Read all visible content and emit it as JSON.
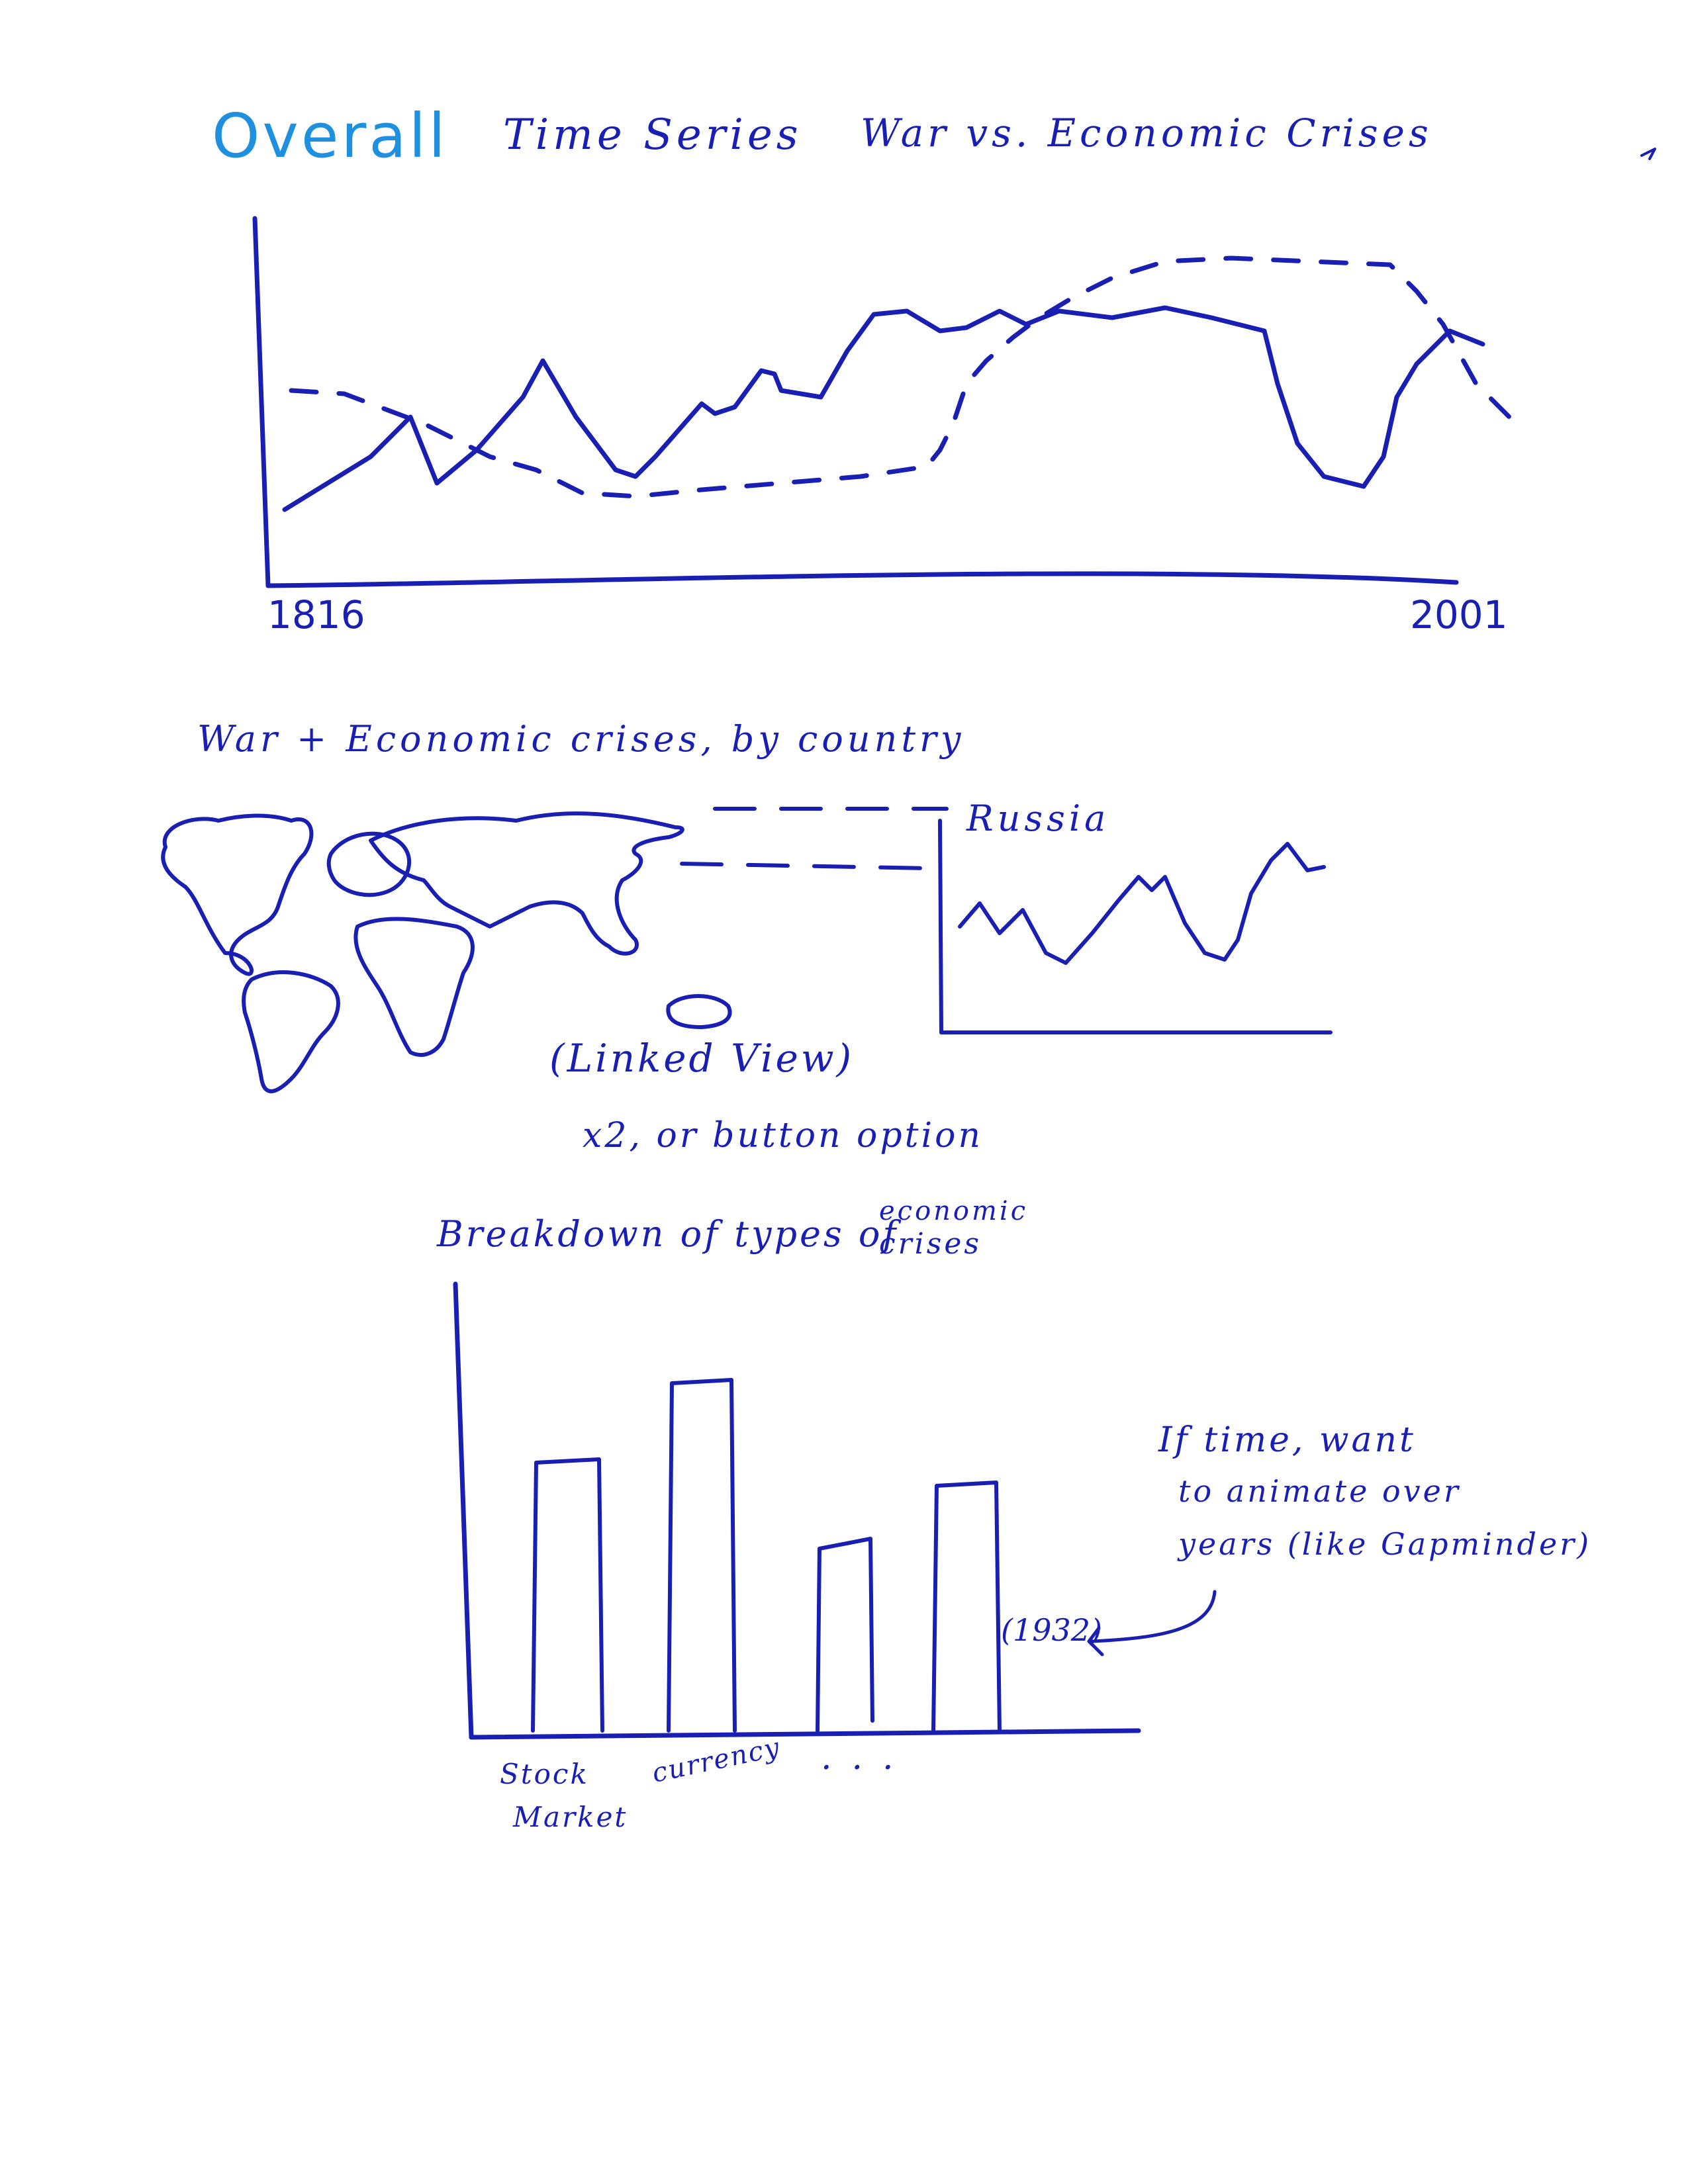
{
  "overall": {
    "word": "Overall",
    "time_series": "Time Series",
    "title": "War vs. Economic Crises",
    "x_start": "1816",
    "x_end": "2001"
  },
  "by_country": {
    "title": "War + Economic crises, by country",
    "country": "Russia",
    "linked_view": "(Linked View)",
    "option": "x2, or button option"
  },
  "breakdown": {
    "title_a": "Breakdown of types of",
    "title_b": "economic",
    "title_c": "crises",
    "categories": [
      "Stock",
      "Market",
      "currency",
      "..."
    ],
    "year": "(1932)",
    "note_line1": "If time, want",
    "note_line2": "to animate over",
    "note_line3": "years (like Gapminder)"
  },
  "colors": {
    "ink": "#1a1fb3",
    "highlight": "#1f8fe0"
  }
}
